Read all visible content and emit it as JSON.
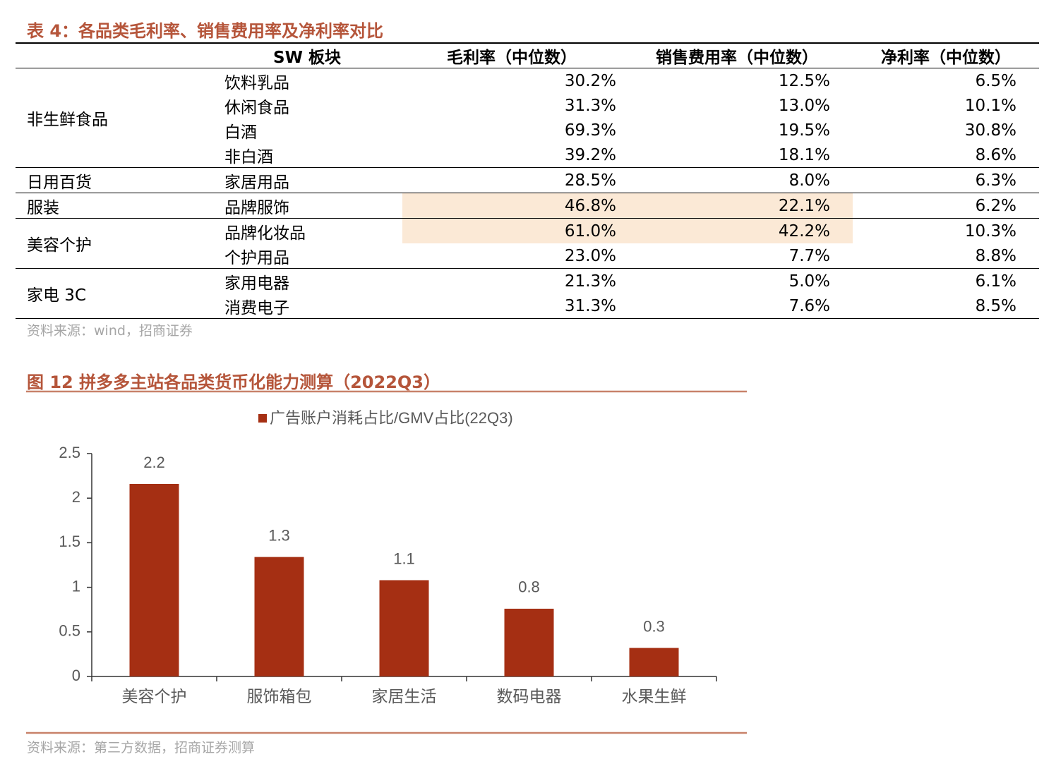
{
  "table": {
    "title": "表 4：各品类毛利率、销售费用率及净利率对比",
    "header": [
      "SW 板块",
      "毛利率（中位数）",
      "销售费用率（中位数）",
      "净利率（中位数）"
    ],
    "groups": [
      {
        "name": "非生鲜食品",
        "rows": [
          [
            "饮料乳品",
            "30.2%",
            "12.5%",
            "6.5%"
          ],
          [
            "休闲食品",
            "31.3%",
            "13.0%",
            "10.1%"
          ],
          [
            "白酒",
            "69.3%",
            "19.5%",
            "30.8%"
          ],
          [
            "非白酒",
            "39.2%",
            "18.1%",
            "8.6%"
          ]
        ]
      },
      {
        "name": "日用百货",
        "rows": [
          [
            "家居用品",
            "28.5%",
            "8.0%",
            "6.3%"
          ]
        ]
      },
      {
        "name": "服装",
        "rows": [
          [
            "品牌服饰",
            "46.8%",
            "22.1%",
            "6.2%"
          ]
        ]
      },
      {
        "name": "美容个护",
        "rows": [
          [
            "品牌化妆品",
            "61.0%",
            "42.2%",
            "10.3%"
          ],
          [
            "个护用品",
            "23.0%",
            "7.7%",
            "8.8%"
          ]
        ]
      },
      {
        "name": "家电 3C",
        "rows": [
          [
            "家用电器",
            "21.3%",
            "5.0%",
            "6.1%"
          ],
          [
            "消费电子",
            "31.3%",
            "7.6%",
            "8.5%"
          ]
        ]
      }
    ],
    "source": "资料来源：wind，招商证券"
  },
  "chart_data": {
    "type": "bar",
    "title": "图 12 拼多多主站各品类货币化能力测算（2022Q3）",
    "categories": [
      "美容个护",
      "服饰箱包",
      "家居生活",
      "数码电器",
      "水果生鲜"
    ],
    "series": [
      {
        "name": "广告账户消耗占比/GMV占比(22Q3)",
        "color": "#a52f13",
        "values": [
          2.16,
          1.34,
          1.08,
          0.76,
          0.32
        ],
        "value_labels": [
          "2.2",
          "1.3",
          "1.1",
          "0.8",
          "0.3"
        ]
      }
    ],
    "ylim": [
      0,
      2.5
    ],
    "yticks": [
      0,
      0.5,
      1,
      1.5,
      2,
      2.5
    ],
    "legend": "top",
    "source": "资料来源：第三方数据，招商证券测算"
  }
}
